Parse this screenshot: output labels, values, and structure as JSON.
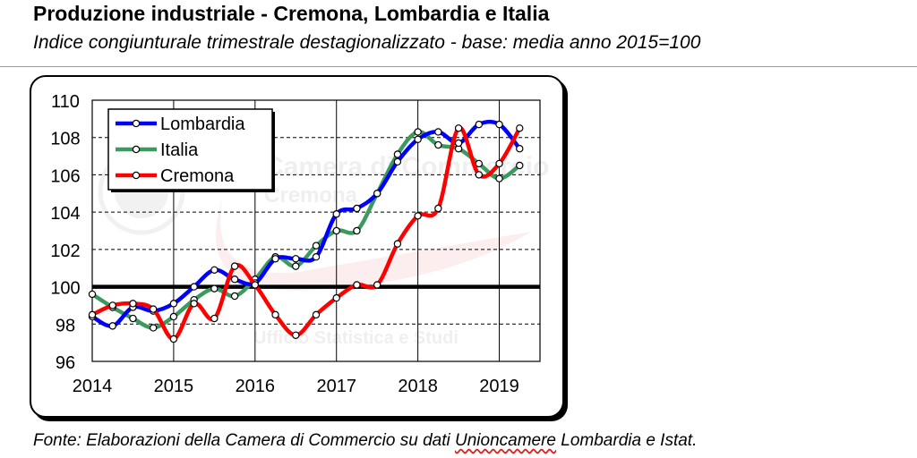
{
  "header": {
    "title": "Produzione industriale - Cremona, Lombardia e Italia",
    "subtitle": "Indice congiunturale trimestrale destagionalizzato - base: media anno 2015=100"
  },
  "source": {
    "prefix": "Fonte: Elaborazioni della Camera di Commercio su dati ",
    "underlined": "Unioncamere",
    "suffix": " Lombardia e Istat."
  },
  "watermark": {
    "line1": "Camera di Commercio",
    "line2": "Cremona",
    "line3": "Ufficio Statistica e Studi"
  },
  "chart_data": {
    "type": "line",
    "title": "",
    "xlabel": "",
    "ylabel": "",
    "x_ticks": [
      "2014",
      "2015",
      "2016",
      "2017",
      "2018",
      "2019"
    ],
    "xlim": [
      2014,
      2019.5
    ],
    "ylim": [
      96,
      110
    ],
    "y_ticks": [
      96,
      98,
      100,
      102,
      104,
      106,
      108,
      110
    ],
    "reference_line": 100,
    "grid": "horizontal dashed",
    "legend": "top-left",
    "x": [
      2014.0,
      2014.25,
      2014.5,
      2014.75,
      2015.0,
      2015.25,
      2015.5,
      2015.75,
      2016.0,
      2016.25,
      2016.5,
      2016.75,
      2017.0,
      2017.25,
      2017.5,
      2017.75,
      2018.0,
      2018.25,
      2018.5,
      2018.75,
      2019.0,
      2019.25
    ],
    "series": [
      {
        "name": "Lombardia",
        "color": "#0000ff",
        "values": [
          98.4,
          97.9,
          98.9,
          98.7,
          99.1,
          100.0,
          100.9,
          100.4,
          100.2,
          101.5,
          101.5,
          101.6,
          103.9,
          104.2,
          105.0,
          106.7,
          107.9,
          108.3,
          107.7,
          108.7,
          108.7,
          107.4
        ]
      },
      {
        "name": "Italia",
        "color": "#3c9a5f",
        "values": [
          99.6,
          98.9,
          98.3,
          97.8,
          98.4,
          99.3,
          99.9,
          99.5,
          100.4,
          101.6,
          101.1,
          102.2,
          103.0,
          103.0,
          105.0,
          107.1,
          108.3,
          107.6,
          107.4,
          106.6,
          105.8,
          106.5
        ]
      },
      {
        "name": "Cremona",
        "color": "#ff0000",
        "values": [
          98.5,
          99.0,
          99.1,
          98.8,
          97.2,
          99.1,
          98.3,
          101.1,
          100.1,
          98.5,
          97.4,
          98.5,
          99.4,
          100.1,
          100.1,
          102.3,
          103.8,
          104.2,
          108.5,
          106.0,
          106.6,
          108.5
        ]
      }
    ]
  }
}
